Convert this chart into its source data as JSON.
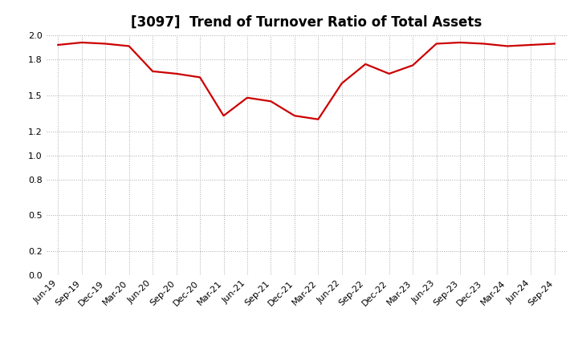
{
  "title": "[3097]  Trend of Turnover Ratio of Total Assets",
  "labels": [
    "Jun-19",
    "Sep-19",
    "Dec-19",
    "Mar-20",
    "Jun-20",
    "Sep-20",
    "Dec-20",
    "Mar-21",
    "Jun-21",
    "Sep-21",
    "Dec-21",
    "Mar-22",
    "Jun-22",
    "Sep-22",
    "Dec-22",
    "Mar-23",
    "Jun-23",
    "Sep-23",
    "Dec-23",
    "Mar-24",
    "Jun-24",
    "Sep-24"
  ],
  "values": [
    1.92,
    1.94,
    1.93,
    1.91,
    1.7,
    1.68,
    1.65,
    1.33,
    1.48,
    1.45,
    1.33,
    1.3,
    1.6,
    1.76,
    1.68,
    1.75,
    1.93,
    1.94,
    1.93,
    1.91,
    1.92,
    1.93
  ],
  "line_color": "#cc0000",
  "line_width": 1.6,
  "ylim": [
    0.0,
    2.0
  ],
  "yticks": [
    0.0,
    0.2,
    0.5,
    0.8,
    1.0,
    1.2,
    1.5,
    1.8,
    2.0
  ],
  "grid_color": "#aaaaaa",
  "bg_color": "#ffffff",
  "title_fontsize": 12,
  "tick_fontsize": 8
}
